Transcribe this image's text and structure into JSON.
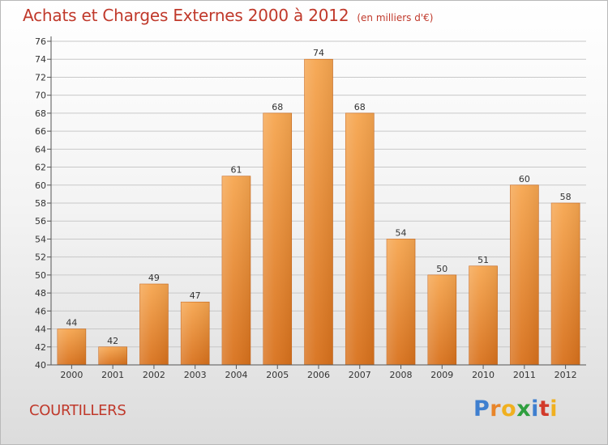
{
  "header": {
    "title": "Achats et Charges Externes 2000 à 2012",
    "unit": "(en milliers d'€)"
  },
  "footer": {
    "place": "COURTILLERS",
    "logo": "Proxiti"
  },
  "colors": {
    "accent_text": "#c0392b",
    "bar_top": "#f6a650",
    "bar_bottom": "#d8711c",
    "logo_letters": [
      "#3f7fcf",
      "#e8852a",
      "#f0b020",
      "#2f9f3f",
      "#3f7fcf",
      "#d23a2a",
      "#f0b020"
    ]
  },
  "chart_data": {
    "type": "bar",
    "title": "Achats et Charges Externes 2000 à 2012",
    "subtitle": "(en milliers d'€)",
    "xlabel": "",
    "ylabel": "",
    "categories": [
      "2000",
      "2001",
      "2002",
      "2003",
      "2004",
      "2005",
      "2006",
      "2007",
      "2008",
      "2009",
      "2010",
      "2011",
      "2012"
    ],
    "values": [
      44,
      42,
      49,
      47,
      61,
      68,
      74,
      68,
      54,
      50,
      51,
      60,
      58
    ],
    "ylim": [
      40,
      76
    ],
    "ytick_step": 2,
    "grid": true,
    "data_labels": true
  }
}
